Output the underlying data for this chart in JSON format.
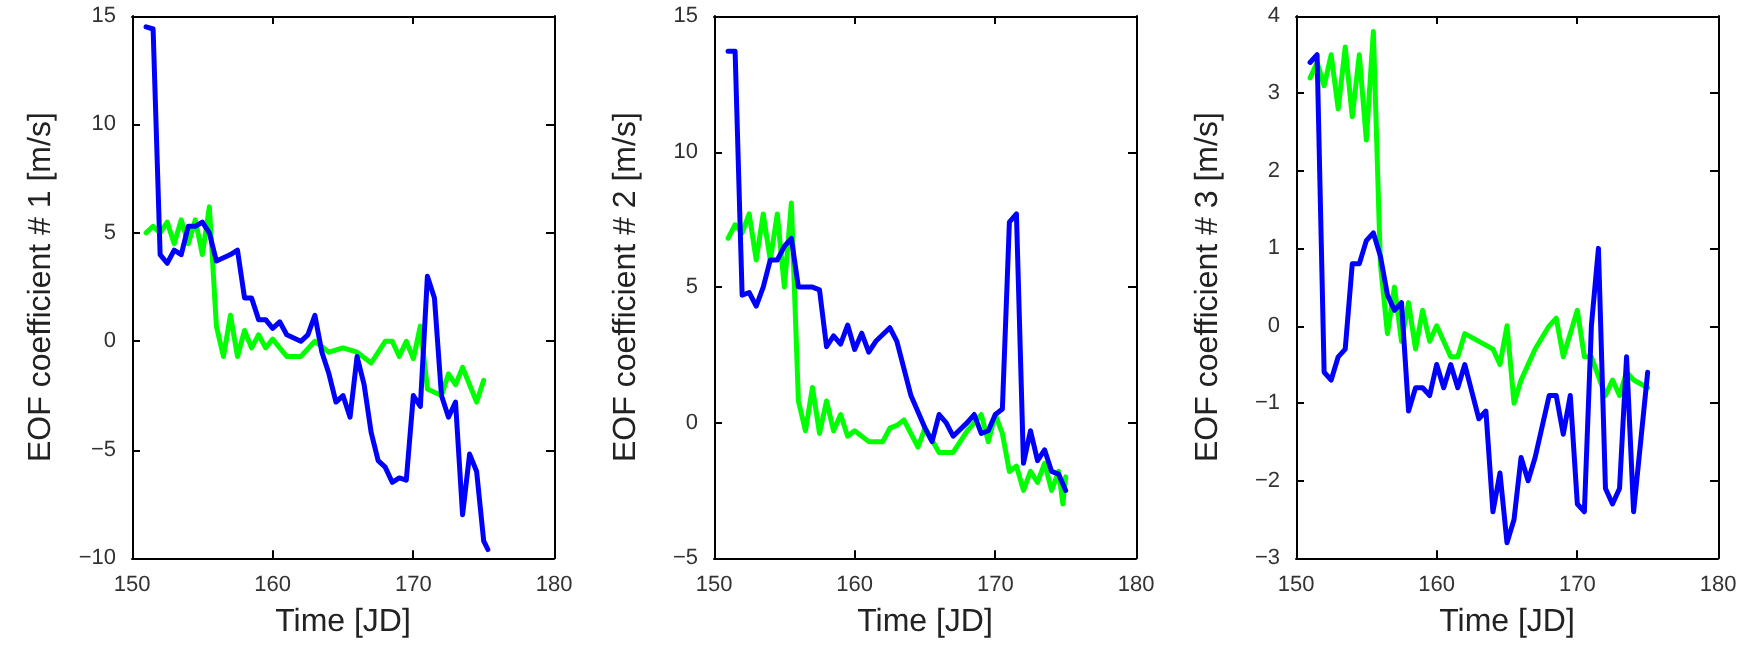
{
  "chart_data": [
    {
      "type": "line",
      "xlabel": "Time [JD]",
      "ylabel": "EOF coefficient # 1 [m/s]",
      "xlim": [
        150,
        180
      ],
      "xticks": [
        150,
        160,
        170,
        180
      ],
      "ylim": [
        -10,
        15
      ],
      "yticks": [
        -10,
        -5,
        0,
        5,
        10,
        15
      ],
      "grid": false,
      "marker": "none",
      "line_style": "solid",
      "series": [
        {
          "color": "#00ff00",
          "x": [
            151,
            151.5,
            152,
            152.5,
            153,
            153.5,
            154,
            154.5,
            155,
            155.5,
            156,
            156.5,
            157,
            157.5,
            158,
            158.5,
            159,
            159.5,
            160,
            161,
            162,
            163,
            164,
            165,
            166,
            167,
            168,
            168.5,
            169,
            169.5,
            170,
            170.5,
            171,
            172,
            172.5,
            173,
            173.5,
            174,
            174.5,
            175
          ],
          "values": [
            5,
            5.3,
            5,
            5.5,
            4.5,
            5.6,
            4.5,
            5.6,
            4,
            6.2,
            0.7,
            -0.7,
            1.2,
            -0.7,
            0.5,
            -0.3,
            0.3,
            -0.3,
            0.1,
            -0.7,
            -0.7,
            0,
            -0.5,
            -0.3,
            -0.5,
            -1,
            0,
            0,
            -0.7,
            0,
            -0.8,
            0.7,
            -2.2,
            -2.5,
            -1.5,
            -2,
            -1.2,
            -2,
            -2.8,
            -1.8
          ]
        },
        {
          "color": "#0000ff",
          "x": [
            151,
            151.5,
            152,
            152.5,
            153,
            153.5,
            154,
            154.5,
            155,
            155.5,
            156,
            157,
            157.5,
            158,
            158.5,
            159,
            159.5,
            160,
            160.5,
            161,
            162,
            162.5,
            163,
            163.5,
            164,
            164.5,
            165,
            165.5,
            166,
            166.5,
            167,
            167.5,
            168,
            168.5,
            169,
            169.5,
            170,
            170.5,
            171,
            171.5,
            172,
            172.5,
            173,
            173.5,
            174,
            174.5,
            175,
            175.3
          ],
          "values": [
            14.5,
            14.4,
            4,
            3.6,
            4.2,
            4,
            5.3,
            5.3,
            5.5,
            5,
            3.7,
            4,
            4.2,
            2,
            2,
            1,
            1,
            0.6,
            0.9,
            0.3,
            0,
            0.3,
            1.2,
            -0.5,
            -1.5,
            -2.8,
            -2.5,
            -3.5,
            -0.7,
            -2,
            -4.2,
            -5.5,
            -5.8,
            -6.5,
            -6.3,
            -6.4,
            -2.5,
            -3,
            3,
            2,
            -2.5,
            -3.5,
            -2.8,
            -8,
            -5.2,
            -6,
            -9.2,
            -9.6
          ]
        }
      ]
    },
    {
      "type": "line",
      "xlabel": "Time [JD]",
      "ylabel": "EOF coefficient # 2 [m/s]",
      "xlim": [
        150,
        180
      ],
      "xticks": [
        150,
        160,
        170,
        180
      ],
      "ylim": [
        -5,
        15
      ],
      "yticks": [
        -5,
        0,
        5,
        10,
        15
      ],
      "grid": false,
      "marker": "none",
      "line_style": "solid",
      "series": [
        {
          "color": "#00ff00",
          "x": [
            151,
            151.5,
            152,
            152.5,
            153,
            153.5,
            154,
            154.5,
            155,
            155.5,
            156,
            156.5,
            157,
            157.5,
            158,
            158.5,
            159,
            159.5,
            160,
            161,
            162,
            162.5,
            163,
            163.5,
            164,
            164.5,
            165,
            166,
            167,
            168,
            169,
            169.5,
            170,
            170.5,
            171,
            171.5,
            172,
            172.5,
            173,
            173.5,
            174,
            174.5,
            174.8,
            175
          ],
          "values": [
            6.8,
            7.3,
            7,
            7.7,
            6,
            7.7,
            6,
            7.7,
            5,
            8.1,
            0.8,
            -0.3,
            1.3,
            -0.4,
            0.8,
            -0.3,
            0.3,
            -0.5,
            -0.3,
            -0.7,
            -0.7,
            -0.2,
            -0.1,
            0.1,
            -0.4,
            -0.9,
            -0.2,
            -1.1,
            -1.1,
            -0.3,
            0.3,
            -0.7,
            0.3,
            -0.4,
            -1.8,
            -1.6,
            -2.5,
            -1.8,
            -2.2,
            -1.5,
            -2.5,
            -1.8,
            -3,
            -2
          ]
        },
        {
          "color": "#0000ff",
          "x": [
            151,
            151.5,
            152,
            152.5,
            153,
            153.5,
            154,
            154.5,
            155,
            155.5,
            156,
            157,
            157.5,
            158,
            158.5,
            159,
            159.5,
            160,
            160.5,
            161,
            161.5,
            162.5,
            163,
            164,
            165,
            165.5,
            166,
            166.5,
            167,
            168,
            168.5,
            169,
            169.5,
            170,
            170.5,
            171,
            171.5,
            172,
            172.5,
            173,
            173.5,
            174,
            174.5,
            175
          ],
          "values": [
            13.7,
            13.7,
            4.7,
            4.8,
            4.3,
            5,
            6,
            6,
            6.5,
            6.8,
            5,
            5,
            4.9,
            2.8,
            3.2,
            2.9,
            3.6,
            2.7,
            3.3,
            2.6,
            3,
            3.5,
            3,
            1,
            -0.2,
            -0.7,
            0.3,
            0,
            -0.5,
            0,
            0.3,
            -0.4,
            -0.3,
            0.3,
            0.5,
            7.4,
            7.7,
            -1.5,
            -0.3,
            -1.4,
            -1,
            -1.8,
            -1.9,
            -2.5
          ]
        }
      ]
    },
    {
      "type": "line",
      "xlabel": "Time [JD]",
      "ylabel": "EOF coefficient # 3 [m/s]",
      "xlim": [
        150,
        180
      ],
      "xticks": [
        150,
        160,
        170,
        180
      ],
      "ylim": [
        -3,
        4
      ],
      "yticks": [
        -3,
        -2,
        -1,
        0,
        1,
        2,
        3,
        4
      ],
      "grid": false,
      "marker": "none",
      "line_style": "solid",
      "series": [
        {
          "color": "#00ff00",
          "x": [
            151,
            151.5,
            152,
            152.5,
            153,
            153.5,
            154,
            154.5,
            155,
            155.5,
            156,
            156.5,
            157,
            157.5,
            158,
            158.5,
            159,
            159.5,
            160,
            161,
            161.5,
            162,
            163,
            164,
            164.5,
            165,
            165.5,
            166,
            167,
            168,
            168.5,
            169,
            170,
            170.5,
            171,
            172,
            172.5,
            173,
            173.5,
            174,
            175
          ],
          "values": [
            3.2,
            3.4,
            3.1,
            3.5,
            2.8,
            3.6,
            2.7,
            3.5,
            2.4,
            3.8,
            0.8,
            -0.1,
            0.5,
            -0.2,
            0.3,
            -0.3,
            0.2,
            -0.2,
            0,
            -0.4,
            -0.4,
            -0.1,
            -0.2,
            -0.3,
            -0.5,
            0,
            -1,
            -0.7,
            -0.3,
            0,
            0.1,
            -0.4,
            0.2,
            -0.4,
            -0.4,
            -0.9,
            -0.7,
            -0.9,
            -0.6,
            -0.7,
            -0.8
          ]
        },
        {
          "color": "#0000ff",
          "x": [
            151,
            151.5,
            152,
            152.5,
            153,
            153.5,
            154,
            154.5,
            155,
            155.5,
            156,
            156.5,
            157,
            157.5,
            158,
            158.5,
            159,
            159.5,
            160,
            160.5,
            161,
            161.5,
            162,
            163,
            163.5,
            164,
            164.5,
            165,
            165.5,
            166,
            166.5,
            167,
            168,
            168.5,
            169,
            169.5,
            170,
            170.5,
            171,
            171.5,
            172,
            172.5,
            173,
            173.5,
            174,
            175
          ],
          "values": [
            3.4,
            3.5,
            -0.6,
            -0.7,
            -0.4,
            -0.3,
            0.8,
            0.8,
            1.1,
            1.2,
            0.9,
            0.4,
            0.2,
            0.3,
            -1.1,
            -0.8,
            -0.8,
            -0.9,
            -0.5,
            -0.8,
            -0.5,
            -0.8,
            -0.5,
            -1.2,
            -1.1,
            -2.4,
            -1.9,
            -2.8,
            -2.5,
            -1.7,
            -2,
            -1.7,
            -0.9,
            -0.9,
            -1.4,
            -0.9,
            -2.3,
            -2.4,
            0,
            1,
            -2.1,
            -2.3,
            -2.1,
            -0.4,
            -2.4,
            -0.6
          ]
        }
      ]
    }
  ]
}
